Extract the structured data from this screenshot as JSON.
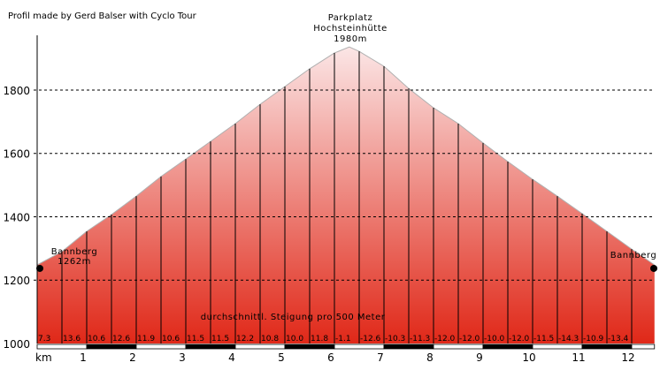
{
  "credit": "Profil made by Gerd Balser with Cyclo Tour",
  "chart_data": {
    "type": "area",
    "title": "",
    "xlabel": "km",
    "ylabel": "",
    "xlim": [
      0,
      12.46
    ],
    "ylim": [
      1000,
      1960
    ],
    "grid": "horizontal dashed",
    "y_ticks": [
      1000,
      1200,
      1400,
      1600,
      1800
    ],
    "x_ticks": [
      1,
      2,
      3,
      4,
      5,
      6,
      7,
      8,
      9,
      10,
      11,
      12
    ],
    "profile": {
      "x": [
        0,
        0.5,
        1,
        1.5,
        2,
        2.5,
        3,
        3.5,
        4,
        4.5,
        5,
        5.5,
        6,
        6.3,
        6.5,
        7,
        7.5,
        8,
        8.5,
        9,
        9.5,
        10,
        10.5,
        11,
        11.5,
        12,
        12.46
      ],
      "y": [
        1248,
        1290,
        1354,
        1407,
        1465,
        1527,
        1582,
        1638,
        1694,
        1755,
        1811,
        1867,
        1917,
        1936,
        1922,
        1875,
        1805,
        1744,
        1694,
        1633,
        1574,
        1518,
        1465,
        1410,
        1354,
        1298,
        1248
      ]
    },
    "annotations": [
      {
        "name": "Bannberg",
        "elevation": "1262m",
        "km": 0
      },
      {
        "name": "Parkplatz Hochsteinhütte",
        "line1": "Parkplatz",
        "line2": "Hochsteinhütte",
        "elevation": "1980m",
        "km": 6.3
      },
      {
        "name": "Bannberg",
        "km": 12.46
      }
    ],
    "gradient_caption": "durchschnittl. Steigung pro 500 Meter",
    "gradients": [
      "7.3",
      "13.6",
      "10.6",
      "12.6",
      "11.9",
      "10.6",
      "11.5",
      "11.5",
      "12.2",
      "10.8",
      "10.0",
      "11.8",
      "-1.1",
      "-12.6",
      "-10.3",
      "-11.3",
      "-12.0",
      "-12.0",
      "-10.0",
      "-12.0",
      "-11.5",
      "-14.3",
      "-10.9",
      "-13.4",
      ""
    ],
    "colors": {
      "fill_top": "#fbe6e6",
      "fill_bottom": "#e02818",
      "outline": "#b0b0b0"
    }
  }
}
